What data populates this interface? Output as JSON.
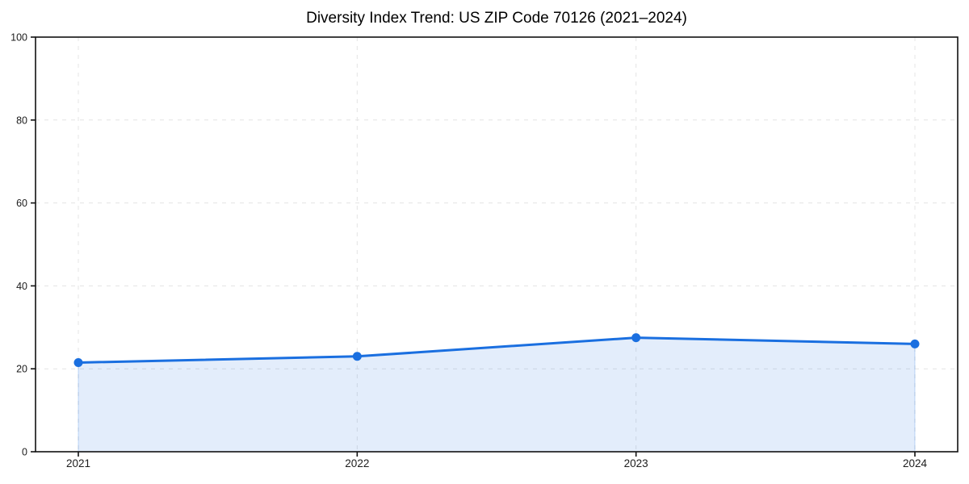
{
  "figure": {
    "background": "#ffffff"
  },
  "chart_data": {
    "type": "line",
    "subtype": "area-filled-line-with-markers",
    "title": "Diversity Index Trend: US ZIP Code 70126 (2021–2024)",
    "x": [
      "2021",
      "2022",
      "2023",
      "2024"
    ],
    "series": [
      {
        "name": "Diversity Index",
        "values": [
          21.5,
          23,
          27.5,
          26
        ]
      }
    ],
    "xlabel": "",
    "ylabel": "",
    "ylim": [
      0,
      100
    ],
    "yticks": [
      0,
      20,
      40,
      60,
      80,
      100
    ],
    "ytick_labels": [
      "0",
      "20",
      "40",
      "60",
      "80",
      "100"
    ],
    "grid": true,
    "grid_style": "dashed",
    "grid_axes": "both",
    "legend_position": "none",
    "marker": "circle",
    "colors": {
      "line": "#1a6fe0",
      "marker": "#1a6fe0",
      "area_fill": "rgba(26,111,224,0.12)",
      "area_edge": "rgba(26,111,224,0.25)",
      "grid": "#e4e4e4",
      "axis": "#111111",
      "tick_label": "#1c1c1c",
      "title": "#000000",
      "background": "#ffffff"
    }
  }
}
